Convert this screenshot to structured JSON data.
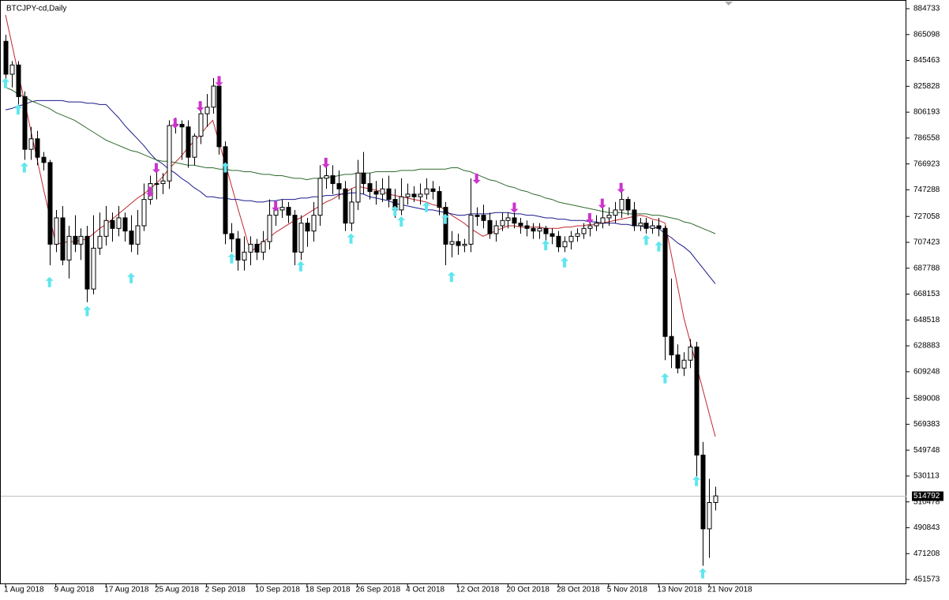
{
  "chart_data": {
    "type": "candlestick",
    "title": "BTCJPY-cd,Daily",
    "categories": [
      "1 Aug 2018",
      null,
      null,
      null,
      null,
      null,
      null,
      null,
      "9 Aug 2018",
      null,
      null,
      null,
      null,
      null,
      null,
      null,
      "17 Aug 2018",
      null,
      null,
      null,
      null,
      null,
      null,
      null,
      "25 Aug 2018",
      null,
      null,
      null,
      null,
      null,
      null,
      null,
      "2 Sep 2018",
      null,
      null,
      null,
      null,
      null,
      null,
      null,
      "10 Sep 2018",
      null,
      null,
      null,
      null,
      null,
      null,
      null,
      "18 Sep 2018",
      null,
      null,
      null,
      null,
      null,
      null,
      null,
      "26 Sep 2018",
      null,
      null,
      null,
      null,
      null,
      null,
      null,
      "4 Oct 2018",
      null,
      null,
      null,
      null,
      null,
      null,
      null,
      "12 Oct 2018",
      null,
      null,
      null,
      null,
      null,
      null,
      null,
      "20 Oct 2018",
      null,
      null,
      null,
      null,
      null,
      null,
      null,
      "28 Oct 2018",
      null,
      null,
      null,
      null,
      null,
      null,
      null,
      "5 Nov 2018",
      null,
      null,
      null,
      null,
      null,
      null,
      null,
      "13 Nov 2018",
      null,
      null,
      null,
      null,
      null,
      null,
      null,
      "21 Nov 2018",
      null
    ],
    "open": [
      860000,
      835000,
      842000,
      818000,
      778000,
      786000,
      772000,
      768000,
      706000,
      726000,
      694000,
      712000,
      706000,
      712000,
      672000,
      703000,
      712000,
      724000,
      718000,
      726000,
      716000,
      706000,
      720000,
      740000,
      752000,
      752000,
      754000,
      796000,
      797000,
      795000,
      772000,
      788000,
      805000,
      810000,
      826000,
      780000,
      714000,
      710000,
      694000,
      700000,
      706000,
      700000,
      708000,
      728000,
      732000,
      734000,
      728000,
      700000,
      722000,
      716000,
      728000,
      756000,
      758000,
      752000,
      748000,
      722000,
      738000,
      760000,
      752000,
      746000,
      744000,
      748000,
      740000,
      732000,
      742000,
      744000,
      742000,
      744000,
      748000,
      746000,
      734000,
      706000,
      708000,
      705000,
      706000,
      728000,
      728000,
      724000,
      714000,
      720000,
      724000,
      726000,
      722000,
      720000,
      718000,
      716000,
      718000,
      714000,
      712000,
      704000,
      708000,
      712000,
      714000,
      718000,
      720000,
      722000,
      726000,
      728000,
      732000,
      740000,
      732000,
      720000,
      722000,
      718000,
      720000,
      718000,
      636000,
      622000,
      612000,
      618000,
      628000,
      546000,
      490000,
      510000
    ],
    "high": [
      865000,
      845000,
      845000,
      822000,
      795000,
      792000,
      776000,
      770000,
      732000,
      735000,
      720000,
      728000,
      718000,
      720000,
      728000,
      730000,
      735000,
      730000,
      735000,
      730000,
      728000,
      732000,
      752000,
      758000,
      766000,
      760000,
      800000,
      802000,
      800000,
      800000,
      790000,
      812000,
      820000,
      832000,
      830000,
      784000,
      722000,
      716000,
      712000,
      712000,
      710000,
      716000,
      740000,
      738000,
      740000,
      738000,
      732000,
      728000,
      726000,
      738000,
      766000,
      770000,
      766000,
      762000,
      754000,
      748000,
      770000,
      776000,
      760000,
      754000,
      756000,
      758000,
      748000,
      756000,
      752000,
      750000,
      752000,
      756000,
      754000,
      750000,
      738000,
      716000,
      714000,
      710000,
      756000,
      734000,
      736000,
      730000,
      724000,
      730000,
      730000,
      730000,
      726000,
      724000,
      722000,
      722000,
      720000,
      718000,
      716000,
      712000,
      716000,
      718000,
      722000,
      724000,
      728000,
      736000,
      734000,
      738000,
      746000,
      742000,
      738000,
      726000,
      726000,
      724000,
      726000,
      720000,
      680000,
      630000,
      624000,
      634000,
      632000,
      556000,
      528000,
      522000
    ],
    "low": [
      828000,
      825000,
      812000,
      770000,
      770000,
      766000,
      762000,
      690000,
      700000,
      690000,
      680000,
      700000,
      694000,
      662000,
      668000,
      698000,
      705000,
      708000,
      712000,
      708000,
      700000,
      698000,
      716000,
      736000,
      740000,
      744000,
      748000,
      790000,
      770000,
      764000,
      766000,
      782000,
      795000,
      805000,
      774000,
      706000,
      700000,
      686000,
      686000,
      690000,
      694000,
      694000,
      702000,
      720000,
      726000,
      722000,
      690000,
      694000,
      704000,
      708000,
      720000,
      748000,
      744000,
      740000,
      716000,
      716000,
      732000,
      744000,
      740000,
      736000,
      738000,
      734000,
      726000,
      728000,
      736000,
      738000,
      736000,
      740000,
      740000,
      728000,
      690000,
      696000,
      698000,
      700000,
      700000,
      720000,
      718000,
      710000,
      708000,
      716000,
      718000,
      718000,
      714000,
      712000,
      710000,
      710000,
      708000,
      706000,
      700000,
      700000,
      702000,
      708000,
      710000,
      712000,
      716000,
      718000,
      720000,
      722000,
      726000,
      728000,
      716000,
      716000,
      714000,
      714000,
      712000,
      618000,
      612000,
      608000,
      606000,
      612000,
      530000,
      462000,
      468000,
      504000
    ],
    "close": [
      835000,
      842000,
      818000,
      778000,
      786000,
      772000,
      768000,
      706000,
      726000,
      694000,
      712000,
      706000,
      712000,
      672000,
      703000,
      712000,
      724000,
      718000,
      726000,
      716000,
      706000,
      720000,
      740000,
      752000,
      752000,
      754000,
      796000,
      797000,
      795000,
      772000,
      788000,
      805000,
      810000,
      826000,
      780000,
      714000,
      710000,
      694000,
      700000,
      706000,
      700000,
      708000,
      728000,
      732000,
      734000,
      728000,
      700000,
      722000,
      716000,
      728000,
      756000,
      758000,
      752000,
      748000,
      722000,
      738000,
      760000,
      752000,
      746000,
      744000,
      748000,
      740000,
      732000,
      742000,
      744000,
      742000,
      744000,
      748000,
      746000,
      734000,
      706000,
      708000,
      705000,
      706000,
      728000,
      727000,
      724000,
      714000,
      720000,
      724000,
      726000,
      722000,
      720000,
      718000,
      716000,
      718000,
      714000,
      712000,
      704000,
      708000,
      712000,
      714000,
      718000,
      720000,
      722000,
      726000,
      728000,
      732000,
      740000,
      732000,
      720000,
      722000,
      718000,
      720000,
      718000,
      636000,
      622000,
      612000,
      618000,
      628000,
      546000,
      490000,
      510000,
      515000
    ],
    "up_color": "#ffffff",
    "down_color": "#000000",
    "ylim": [
      447997,
      891323
    ],
    "yticks": [
      884733,
      865098,
      845463,
      825828,
      806193,
      786558,
      766923,
      747288,
      727058,
      707423,
      687788,
      668153,
      648518,
      628883,
      609248,
      589008,
      569383,
      549748,
      530113,
      510478,
      490843,
      471208,
      451573
    ],
    "current_price": 514792,
    "lines": [
      {
        "color": "#c0282d",
        "values": [
          880000,
          858000,
          836000,
          815000,
          793000,
          771000,
          749000,
          728000,
          706000,
          707000,
          708000,
          708000,
          709000,
          710000,
          714000,
          718000,
          721000,
          725000,
          729000,
          733000,
          737000,
          741000,
          744000,
          748000,
          752000,
          757000,
          763000,
          768000,
          773000,
          779000,
          784000,
          789000,
          795000,
          800000,
          783000,
          767000,
          750000,
          733000,
          717000,
          700000,
          704000,
          708000,
          711000,
          715000,
          718000,
          721000,
          724000,
          726000,
          729000,
          732000,
          735000,
          738000,
          740000,
          743000,
          745000,
          748000,
          750000,
          749000,
          748000,
          747000,
          746000,
          744000,
          743000,
          742000,
          741000,
          740000,
          739000,
          738000,
          736000,
          735000,
          732000,
          728000,
          725000,
          722000,
          718000,
          715000,
          712000,
          714000,
          716000,
          718000,
          720000,
          720000,
          719000,
          719000,
          719000,
          719000,
          718000,
          718000,
          718000,
          719000,
          719000,
          720000,
          720000,
          721000,
          721000,
          722000,
          723000,
          724000,
          725000,
          726000,
          727000,
          728000,
          727000,
          725000,
          724000,
          722000,
          698000,
          674000,
          650000,
          632000,
          614000,
          596000,
          578000,
          560000
        ]
      },
      {
        "color": "#1a1a8c",
        "values": [
          808000,
          809000,
          811000,
          812000,
          814000,
          815000,
          815000,
          815000,
          815000,
          815000,
          814000,
          814000,
          814000,
          813000,
          813000,
          812000,
          812000,
          807000,
          802000,
          796000,
          791000,
          786000,
          781000,
          775000,
          770000,
          767000,
          763000,
          760000,
          756000,
          753000,
          749000,
          746000,
          742000,
          742000,
          741000,
          741000,
          740000,
          740000,
          739000,
          739000,
          738000,
          738000,
          739000,
          739000,
          740000,
          740000,
          740000,
          741000,
          741000,
          742000,
          742000,
          743000,
          743000,
          744000,
          744000,
          745000,
          745000,
          744000,
          742000,
          741000,
          740000,
          739000,
          737000,
          736000,
          735000,
          734000,
          733000,
          732000,
          732000,
          731000,
          730000,
          729000,
          728000,
          728000,
          729000,
          729000,
          729000,
          729000,
          730000,
          730000,
          730000,
          729000,
          729000,
          728000,
          728000,
          727000,
          726000,
          726000,
          725000,
          725000,
          724000,
          724000,
          724000,
          723000,
          723000,
          722000,
          722000,
          722000,
          721000,
          721000,
          720000,
          720000,
          719000,
          719000,
          718000,
          714000,
          711000,
          707000,
          704000,
          700000,
          694000,
          688000,
          682000,
          676000
        ]
      },
      {
        "color": "#2e6b2e",
        "values": [
          825000,
          823000,
          820000,
          818000,
          815000,
          813000,
          811000,
          809000,
          806000,
          804000,
          802000,
          800000,
          797000,
          794000,
          791000,
          788000,
          785000,
          783000,
          781000,
          779000,
          777000,
          776000,
          774000,
          772000,
          770000,
          769000,
          769000,
          768000,
          767000,
          766000,
          766000,
          765000,
          764000,
          764000,
          763000,
          763000,
          762000,
          762000,
          761000,
          761000,
          760000,
          759000,
          759000,
          758000,
          758000,
          757000,
          756000,
          756000,
          755000,
          756000,
          756000,
          757000,
          757000,
          758000,
          759000,
          759000,
          760000,
          760000,
          760000,
          761000,
          761000,
          761000,
          761000,
          762000,
          762000,
          762000,
          763000,
          763000,
          763000,
          763000,
          763000,
          764000,
          764000,
          762000,
          761000,
          759000,
          757000,
          755000,
          754000,
          752000,
          750000,
          749000,
          747000,
          746000,
          744000,
          743000,
          741000,
          740000,
          738000,
          737000,
          736000,
          735000,
          734000,
          733000,
          732000,
          731000,
          730000,
          730000,
          730000,
          729000,
          729000,
          729000,
          729000,
          728000,
          728000,
          727000,
          726000,
          725000,
          723000,
          722000,
          720000,
          718000,
          716000,
          714000
        ]
      }
    ],
    "buy_arrows": {
      "color": "#5fe6ee",
      "values": [
        828000,
        null,
        808000,
        764000,
        null,
        null,
        null,
        677000,
        null,
        null,
        null,
        null,
        null,
        655000,
        null,
        null,
        null,
        null,
        null,
        null,
        680000,
        null,
        null,
        null,
        null,
        null,
        null,
        null,
        null,
        null,
        null,
        null,
        null,
        null,
        null,
        764000,
        695000,
        null,
        null,
        null,
        null,
        null,
        null,
        null,
        null,
        null,
        null,
        689000,
        null,
        null,
        null,
        null,
        null,
        null,
        null,
        710000,
        null,
        null,
        null,
        null,
        null,
        null,
        731000,
        723000,
        null,
        null,
        null,
        734000,
        null,
        null,
        725000,
        681000,
        null,
        null,
        null,
        null,
        null,
        null,
        null,
        null,
        null,
        null,
        null,
        null,
        null,
        null,
        705000,
        null,
        null,
        692000,
        null,
        null,
        null,
        null,
        null,
        null,
        null,
        null,
        null,
        null,
        null,
        null,
        709000,
        null,
        704000,
        604000,
        null,
        null,
        null,
        null,
        526000,
        456000,
        null,
        null
      ]
    },
    "sell_arrows": {
      "color": "#cc33cc",
      "values": [
        null,
        null,
        null,
        null,
        null,
        null,
        null,
        null,
        null,
        null,
        null,
        null,
        null,
        null,
        null,
        null,
        null,
        null,
        null,
        null,
        null,
        null,
        null,
        746000,
        764000,
        null,
        null,
        798000,
        null,
        null,
        null,
        811000,
        null,
        null,
        830000,
        null,
        null,
        null,
        null,
        null,
        null,
        null,
        null,
        735000,
        null,
        null,
        null,
        null,
        null,
        null,
        null,
        768000,
        null,
        null,
        null,
        null,
        null,
        null,
        null,
        null,
        null,
        null,
        null,
        null,
        null,
        null,
        null,
        null,
        null,
        null,
        null,
        null,
        null,
        null,
        null,
        756000,
        null,
        null,
        null,
        null,
        null,
        734000,
        null,
        null,
        null,
        null,
        null,
        null,
        null,
        null,
        null,
        null,
        null,
        726000,
        null,
        737000,
        null,
        null,
        749000,
        null,
        null,
        null,
        null,
        null,
        null,
        null,
        null,
        null,
        null,
        null,
        null,
        null,
        null,
        null
      ]
    }
  }
}
